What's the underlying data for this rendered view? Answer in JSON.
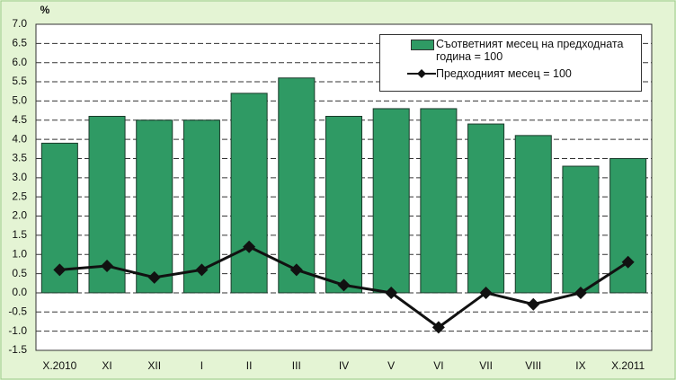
{
  "chart_data": {
    "type": "bar",
    "y_label": "%",
    "categories": [
      "X.2010",
      "XI",
      "XII",
      "I",
      "II",
      "III",
      "IV",
      "V",
      "VI",
      "VII",
      "VIII",
      "IX",
      "X.2011"
    ],
    "series": [
      {
        "name": "Съответният месец на предходната година = 100",
        "type": "bar",
        "color": "#2f9a64",
        "values": [
          3.9,
          4.6,
          4.5,
          4.5,
          5.2,
          5.6,
          4.6,
          4.8,
          4.8,
          4.4,
          4.1,
          3.3,
          3.5
        ]
      },
      {
        "name": "Предходният месец = 100",
        "type": "line",
        "color": "#111111",
        "values": [
          0.6,
          0.7,
          0.4,
          0.6,
          1.2,
          0.6,
          0.2,
          0.0,
          -0.9,
          0.0,
          -0.3,
          0.0,
          0.8
        ]
      }
    ],
    "ylim": [
      -1.5,
      7.0
    ],
    "yticks": [
      {
        "value": -1.5,
        "label": "-1.5"
      },
      {
        "value": -1.0,
        "label": "-1.0"
      },
      {
        "value": -0.5,
        "label": "-0.5"
      },
      {
        "value": 0,
        "label": "0.0"
      },
      {
        "value": 0.5,
        "label": "0.5"
      },
      {
        "value": 1.0,
        "label": "1.0"
      },
      {
        "value": 1.5,
        "label": "1.5"
      },
      {
        "value": 2.0,
        "label": "2.0"
      },
      {
        "value": 2.5,
        "label": "2.5"
      },
      {
        "value": 3.0,
        "label": "3.0"
      },
      {
        "value": 3.5,
        "label": "3.5"
      },
      {
        "value": 4.0,
        "label": "4.0"
      },
      {
        "value": 4.5,
        "label": "4.5"
      },
      {
        "value": 5.0,
        "label": "5.0"
      },
      {
        "value": 5.5,
        "label": "5.5"
      },
      {
        "value": 6.0,
        "label": "6.0"
      },
      {
        "value": 6.5,
        "label": "6.5"
      },
      {
        "value": 7.0,
        "label": "7.0"
      }
    ],
    "grid": true
  }
}
